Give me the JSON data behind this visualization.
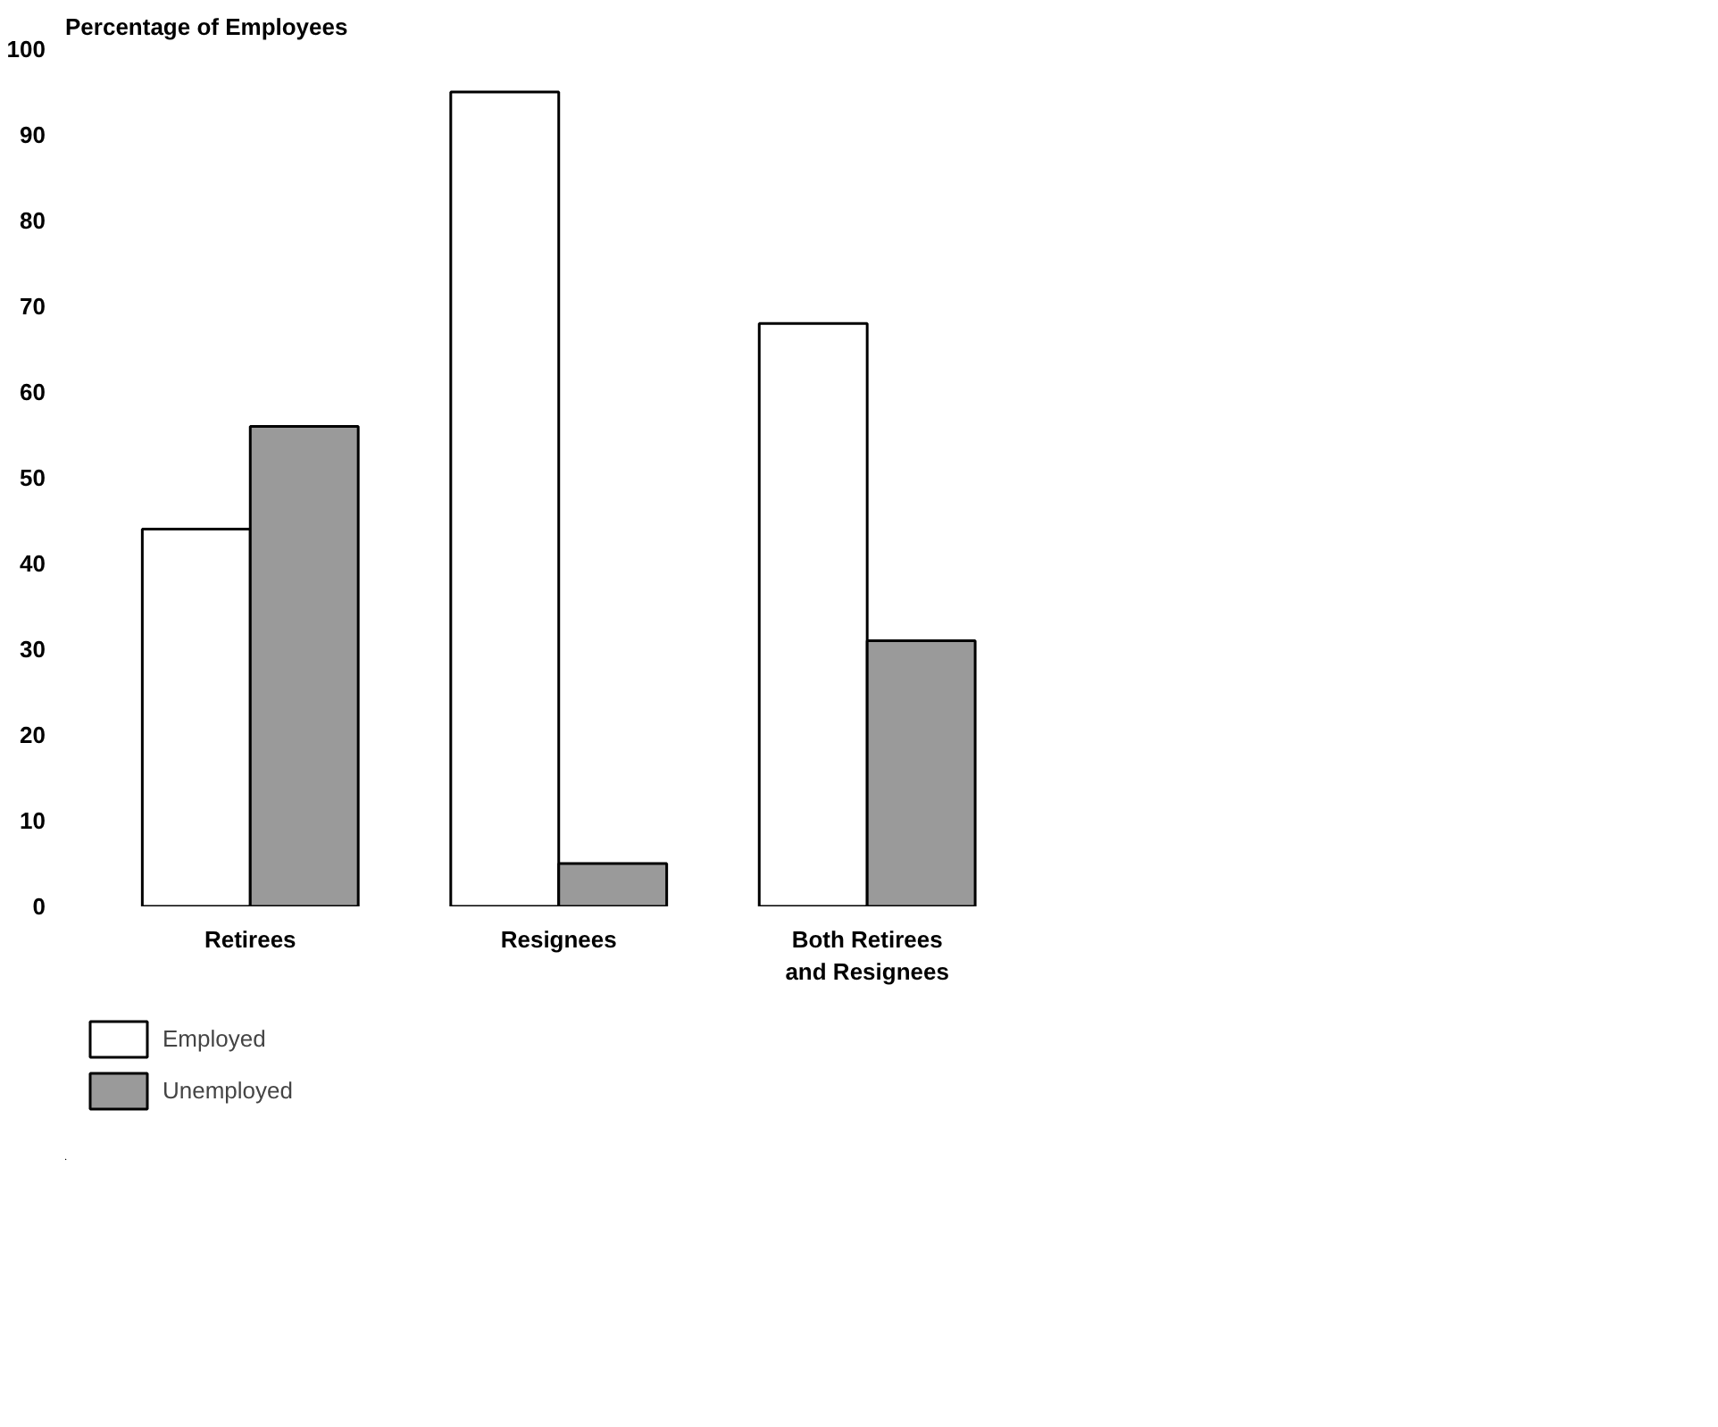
{
  "chart_data": {
    "type": "bar",
    "ylabel": "Percentage of Employees",
    "categories": [
      "Retirees",
      "Resignees",
      "Both Retirees\nand Resignees"
    ],
    "series": [
      {
        "name": "Employed",
        "color": "#ffffff",
        "values": [
          44,
          95,
          68
        ]
      },
      {
        "name": "Unemployed",
        "color": "#9a9a9a",
        "values": [
          56,
          5,
          31
        ]
      }
    ],
    "ylim": [
      0,
      100
    ],
    "yticks": [
      0,
      10,
      20,
      30,
      40,
      50,
      60,
      70,
      80,
      90,
      100
    ],
    "grid": false,
    "legend": "bottom left"
  }
}
